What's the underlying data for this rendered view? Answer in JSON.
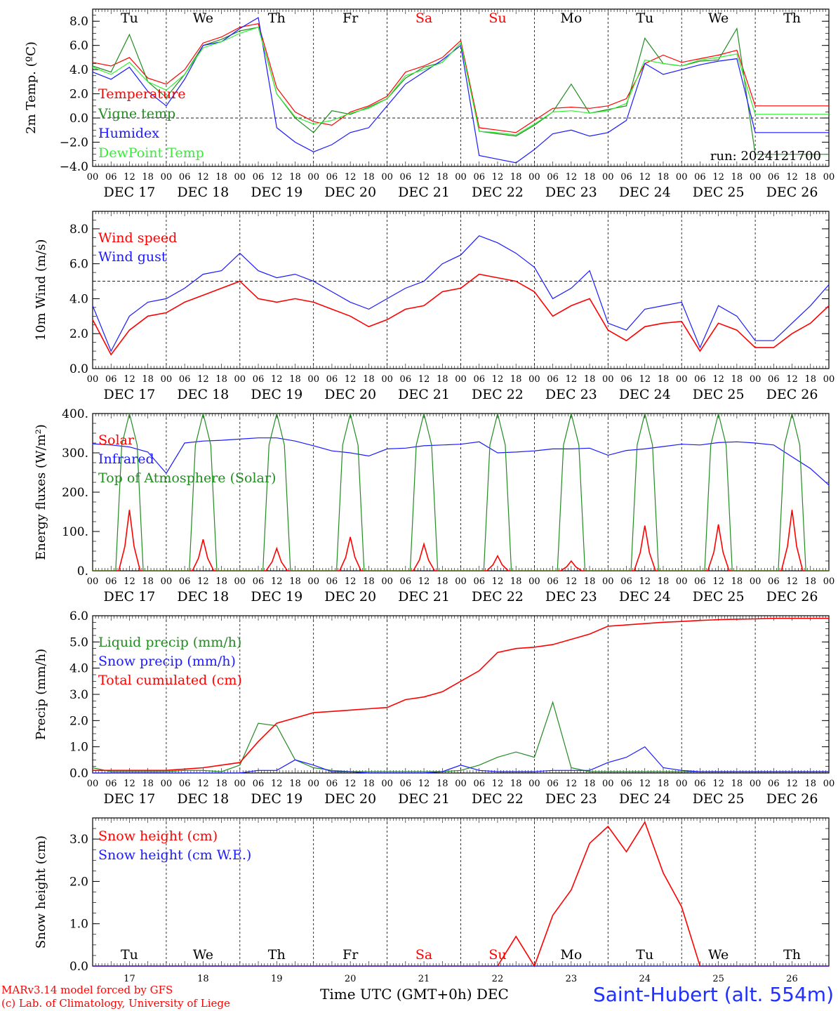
{
  "footer": {
    "model": "MARv3.14 model forced by GFS",
    "credit": "(c) Lab. of Climatology, University of Liege",
    "xaxis_title": "Time UTC (GMT+0h) DEC",
    "station": "Saint-Hubert (alt. 554m)"
  },
  "x_axis": {
    "hour_ticks": [
      "00",
      "06",
      "12",
      "18"
    ],
    "end_tick": "00",
    "dates": [
      "DEC 17",
      "DEC 18",
      "DEC 19",
      "DEC 20",
      "DEC 21",
      "DEC 22",
      "DEC 23",
      "DEC 24",
      "DEC 25",
      "DEC 26"
    ],
    "weekdays": [
      "Tu",
      "We",
      "Th",
      "Fr",
      "Sa",
      "Su",
      "Mo",
      "Tu",
      "We",
      "Th"
    ],
    "weekday_colors": [
      "#000000",
      "#000000",
      "#000000",
      "#000000",
      "#ff0000",
      "#ff0000",
      "#000000",
      "#000000",
      "#000000",
      "#000000"
    ],
    "day_numbers": [
      "17",
      "18",
      "19",
      "20",
      "21",
      "22",
      "23",
      "24",
      "25",
      "26"
    ]
  },
  "colors": {
    "red": "#ff0000",
    "green": "#228B22",
    "blue": "#1a1aff",
    "lightgreen": "#33ee33",
    "grey": "#808080"
  },
  "chart_data": [
    {
      "type": "line",
      "ylabel": "2m Temp. (ºC)",
      "ylim": [
        -4,
        9
      ],
      "yticks": [
        "8.0",
        "6.0",
        "4.0",
        "2.0",
        "0.0",
        "−2.0",
        "−4.0"
      ],
      "annotation": "run: 2024121700",
      "x_hours_from_dec17_00": [
        0,
        6,
        12,
        18,
        24,
        30,
        36,
        42,
        48,
        54,
        60,
        66,
        72,
        78,
        84,
        90,
        96,
        102,
        108,
        114,
        120,
        126,
        132,
        138,
        144,
        150,
        156,
        162,
        168,
        174,
        180,
        186,
        192,
        198,
        204,
        210,
        216,
        222,
        228,
        234,
        240
      ],
      "series": [
        {
          "name": "Temperature",
          "color": "red",
          "values": [
            4.6,
            4.3,
            5.0,
            3.3,
            2.8,
            4.0,
            6.2,
            6.7,
            7.5,
            7.8,
            2.5,
            0.5,
            -0.3,
            -0.6,
            0.5,
            1.0,
            1.8,
            3.8,
            4.3,
            5.0,
            6.4,
            -0.8,
            -1.0,
            -1.2,
            -0.2,
            0.8,
            0.9,
            0.8,
            1.0,
            1.6,
            4.5,
            5.2,
            4.6,
            4.9,
            5.2,
            5.6,
            1.0,
            1.0,
            1.0,
            1.0,
            1.0
          ]
        },
        {
          "name": "Vigne temp",
          "color": "green",
          "values": [
            4.3,
            3.8,
            6.9,
            3.0,
            1.7,
            3.6,
            6.0,
            6.5,
            7.2,
            7.5,
            2.0,
            0.0,
            -1.2,
            0.6,
            0.3,
            0.9,
            1.6,
            3.3,
            4.2,
            4.6,
            6.2,
            -1.1,
            -1.3,
            -1.5,
            -0.6,
            0.5,
            2.8,
            0.4,
            0.7,
            1.0,
            6.6,
            4.5,
            4.3,
            4.7,
            4.8,
            7.4,
            -3.0,
            -3.0,
            -3.0,
            -3.0,
            -3.0
          ]
        },
        {
          "name": "Humidex",
          "color": "blue",
          "values": [
            3.8,
            3.2,
            4.2,
            2.2,
            1.0,
            3.2,
            6.0,
            6.3,
            7.4,
            8.3,
            -0.8,
            -2.0,
            -2.8,
            -2.2,
            -1.2,
            -0.8,
            1.0,
            2.8,
            3.8,
            4.8,
            6.0,
            -3.1,
            -3.4,
            -3.7,
            -2.6,
            -1.3,
            -1.0,
            -1.5,
            -1.2,
            -0.2,
            4.5,
            3.6,
            4.0,
            4.4,
            4.7,
            4.9,
            -1.2,
            -1.2,
            -1.2,
            -1.2,
            -1.2
          ]
        },
        {
          "name": "DewPoint Temp",
          "color": "lightgreen",
          "values": [
            4.2,
            3.6,
            4.6,
            3.0,
            2.3,
            3.6,
            5.8,
            6.3,
            7.0,
            7.5,
            2.0,
            0.1,
            -0.5,
            -0.2,
            0.4,
            0.8,
            1.6,
            3.5,
            4.0,
            4.6,
            6.2,
            -1.1,
            -1.2,
            -1.4,
            -0.5,
            0.5,
            0.6,
            0.4,
            0.6,
            1.2,
            4.8,
            4.5,
            4.3,
            4.8,
            5.0,
            5.3,
            0.3,
            0.3,
            0.3,
            0.3,
            0.3
          ]
        }
      ],
      "zero_line": 0
    },
    {
      "type": "line",
      "ylabel": "10m Wind (m/s)",
      "ylim": [
        0,
        9
      ],
      "yticks": [
        "8.0",
        "6.0",
        "4.0",
        "2.0",
        "0.0"
      ],
      "x_hours_from_dec17_00": [
        0,
        6,
        12,
        18,
        24,
        30,
        36,
        42,
        48,
        54,
        60,
        66,
        72,
        78,
        84,
        90,
        96,
        102,
        108,
        114,
        120,
        126,
        132,
        138,
        144,
        150,
        156,
        162,
        168,
        174,
        180,
        186,
        192,
        198,
        204,
        210,
        216,
        222,
        228,
        234,
        240
      ],
      "series": [
        {
          "name": "Wind speed",
          "color": "red",
          "values": [
            2.8,
            0.8,
            2.2,
            3.0,
            3.2,
            3.8,
            4.2,
            4.6,
            5.0,
            4.0,
            3.8,
            4.0,
            3.8,
            3.4,
            3.0,
            2.4,
            2.8,
            3.4,
            3.6,
            4.4,
            4.6,
            5.4,
            5.2,
            5.0,
            4.4,
            3.0,
            3.6,
            4.0,
            2.2,
            1.6,
            2.4,
            2.6,
            2.7,
            1.0,
            2.6,
            2.2,
            1.2,
            1.2,
            2.0,
            2.6,
            3.6
          ]
        },
        {
          "name": "Wind gust",
          "color": "blue",
          "values": [
            3.6,
            1.0,
            3.0,
            3.8,
            4.0,
            4.6,
            5.4,
            5.6,
            6.6,
            5.6,
            5.2,
            5.4,
            5.0,
            4.4,
            3.8,
            3.4,
            4.0,
            4.6,
            5.0,
            6.0,
            6.5,
            7.6,
            7.2,
            6.6,
            5.8,
            4.0,
            4.6,
            5.6,
            2.6,
            2.2,
            3.4,
            3.6,
            3.8,
            1.2,
            3.6,
            3.0,
            1.6,
            1.6,
            2.6,
            3.6,
            4.8
          ]
        }
      ],
      "dashed_line": 5
    },
    {
      "type": "line",
      "ylabel": "Energy fluxes (W/m²)",
      "ylim": [
        0,
        400
      ],
      "yticks": [
        "400.",
        "300.",
        "200.",
        "100.",
        "0."
      ],
      "x_hours_from_dec17_00": [
        0,
        6,
        12,
        18,
        24,
        30,
        36,
        42,
        48,
        54,
        60,
        66,
        72,
        78,
        84,
        90,
        96,
        102,
        108,
        114,
        120,
        126,
        132,
        138,
        144,
        150,
        156,
        162,
        168,
        174,
        180,
        186,
        192,
        198,
        204,
        210,
        216,
        222,
        228,
        234,
        240
      ],
      "series": [
        {
          "name": "Solar",
          "color": "red",
          "daily_peaks": [
            155,
            80,
            57,
            86,
            68,
            38,
            25,
            115,
            118,
            155
          ]
        },
        {
          "name": "Infrared",
          "color": "blue",
          "values": [
            323,
            320,
            315,
            302,
            248,
            325,
            330,
            332,
            335,
            338,
            338,
            330,
            318,
            305,
            300,
            292,
            310,
            312,
            318,
            320,
            322,
            328,
            300,
            302,
            305,
            310,
            310,
            312,
            294,
            306,
            310,
            316,
            322,
            320,
            326,
            328,
            325,
            320,
            290,
            260,
            218
          ]
        },
        {
          "name": "Top of Atmosphere (Solar)",
          "color": "green",
          "daily_peak": 400
        }
      ]
    },
    {
      "type": "line",
      "ylabel": "Precip (mm/h)",
      "ylim": [
        0,
        6
      ],
      "yticks": [
        "6.0",
        "5.0",
        "4.0",
        "3.0",
        "2.0",
        "1.0",
        "0.0"
      ],
      "x_hours_from_dec17_00": [
        0,
        6,
        12,
        18,
        24,
        30,
        36,
        42,
        48,
        54,
        60,
        66,
        72,
        78,
        84,
        90,
        96,
        102,
        108,
        114,
        120,
        126,
        132,
        138,
        144,
        150,
        156,
        162,
        168,
        174,
        180,
        186,
        192,
        198,
        204,
        210,
        216,
        222,
        228,
        234,
        240
      ],
      "series": [
        {
          "name": "Liquid precip (mm/h)",
          "color": "green",
          "values": [
            0.2,
            0.05,
            0.05,
            0.05,
            0.05,
            0.1,
            0.1,
            0.05,
            0.3,
            1.9,
            1.8,
            0.5,
            0.2,
            0.1,
            0.05,
            0.05,
            0.05,
            0.05,
            0.05,
            0.05,
            0.1,
            0.3,
            0.6,
            0.8,
            0.6,
            2.7,
            0.2,
            0.05,
            0.05,
            0.05,
            0.05,
            0.05,
            0.05,
            0.05,
            0.05,
            0.05,
            0.05,
            0.05,
            0.05,
            0.05,
            0.05
          ]
        },
        {
          "name": "Snow precip (mm/h)",
          "color": "blue",
          "values": [
            0,
            0,
            0,
            0,
            0,
            0,
            0,
            0,
            0,
            0.1,
            0.1,
            0.5,
            0.3,
            0.05,
            0.05,
            0,
            0,
            0,
            0,
            0.05,
            0.3,
            0.1,
            0.05,
            0.05,
            0.05,
            0.1,
            0.1,
            0.1,
            0.4,
            0.6,
            1.0,
            0.2,
            0.1,
            0.05,
            0.05,
            0.05,
            0.05,
            0.05,
            0.05,
            0.05,
            0.05
          ]
        },
        {
          "name": "Total cumulated (cm)",
          "color": "red",
          "values": [
            0.1,
            0.1,
            0.1,
            0.1,
            0.1,
            0.15,
            0.2,
            0.3,
            0.4,
            1.2,
            1.9,
            2.1,
            2.3,
            2.35,
            2.4,
            2.45,
            2.5,
            2.8,
            2.9,
            3.1,
            3.5,
            3.9,
            4.6,
            4.75,
            4.8,
            4.9,
            5.1,
            5.3,
            5.6,
            5.65,
            5.7,
            5.75,
            5.78,
            5.82,
            5.85,
            5.87,
            5.88,
            5.9,
            5.9,
            5.9,
            5.9
          ]
        }
      ]
    },
    {
      "type": "line",
      "ylabel": "Snow height (cm)",
      "ylim": [
        0,
        3.5
      ],
      "yticks": [
        "3.0",
        "2.0",
        "1.0",
        "0.0"
      ],
      "x_hours_from_dec17_00": [
        0,
        102,
        114,
        120,
        126,
        132,
        138,
        144,
        150,
        156,
        162,
        168,
        174,
        180,
        186,
        192,
        198,
        204,
        210,
        216,
        222,
        228,
        234,
        240
      ],
      "series": [
        {
          "name": "Snow height (cm)",
          "color": "red",
          "values": [
            0,
            0,
            0,
            0,
            0,
            0,
            0.7,
            0,
            1.2,
            1.8,
            2.9,
            3.3,
            2.7,
            3.4,
            2.2,
            1.4,
            0,
            0,
            0,
            0,
            0,
            0,
            0,
            0
          ]
        },
        {
          "name": "Snow height (cm W.E.)",
          "color": "blue",
          "values": [
            0,
            0,
            0,
            0,
            0,
            0,
            0,
            0,
            0,
            0,
            0,
            0,
            0,
            0,
            0,
            0,
            0,
            0,
            0,
            0,
            0,
            0,
            0,
            0
          ]
        }
      ]
    }
  ]
}
